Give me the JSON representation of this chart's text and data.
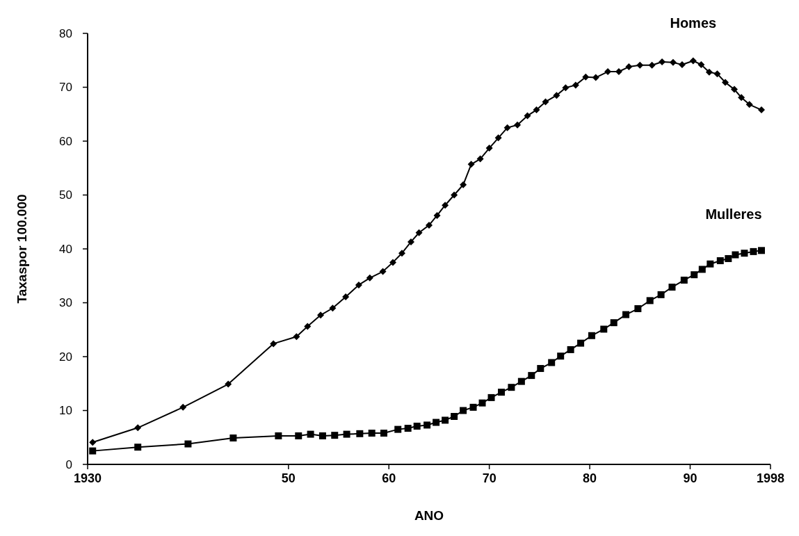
{
  "chart_data": {
    "type": "line",
    "xlabel": "ANO",
    "ylabel": "Taxaspor 100.000",
    "xlim": [
      1930,
      1998
    ],
    "ylim": [
      0,
      80
    ],
    "xticks": [
      {
        "value": 1930,
        "label": "1930"
      },
      {
        "value": 1950,
        "label": "50"
      },
      {
        "value": 1960,
        "label": "60"
      },
      {
        "value": 1970,
        "label": "70"
      },
      {
        "value": 1980,
        "label": "80"
      },
      {
        "value": 1990,
        "label": "90"
      },
      {
        "value": 1998,
        "label": "1998"
      }
    ],
    "yticks": [
      0,
      10,
      20,
      30,
      40,
      50,
      60,
      70,
      80
    ],
    "grid": false,
    "series": [
      {
        "name": "Homes",
        "color": "#000000",
        "marker": "diamond",
        "x": [
          1930.5,
          1935,
          1939.5,
          1944,
          1948.5,
          1950.8,
          1951.9,
          1953.2,
          1954.4,
          1955.7,
          1957.0,
          1958.1,
          1959.4,
          1960.4,
          1961.3,
          1962.2,
          1963.0,
          1964.0,
          1964.8,
          1965.6,
          1966.5,
          1967.4,
          1968.2,
          1969.1,
          1970.0,
          1970.9,
          1971.8,
          1972.8,
          1973.8,
          1974.7,
          1975.6,
          1976.7,
          1977.6,
          1978.6,
          1979.6,
          1980.6,
          1981.8,
          1982.9,
          1983.9,
          1985.0,
          1986.2,
          1987.2,
          1988.3,
          1989.2,
          1990.3,
          1991.1,
          1991.9,
          1992.7,
          1993.5,
          1994.4,
          1995.1,
          1995.9,
          1997.1
        ],
        "values": [
          4.1,
          6.8,
          10.6,
          14.9,
          22.4,
          23.7,
          25.6,
          27.7,
          29.0,
          31.1,
          33.3,
          34.6,
          35.8,
          37.5,
          39.2,
          41.3,
          43.0,
          44.4,
          46.2,
          48.1,
          50.0,
          51.9,
          55.7,
          56.7,
          58.7,
          60.6,
          62.5,
          63.0,
          64.7,
          65.8,
          67.3,
          68.5,
          69.9,
          70.4,
          71.9,
          71.8,
          72.9,
          72.9,
          73.8,
          74.1,
          74.1,
          74.7,
          74.6,
          74.2,
          74.9,
          74.2,
          72.8,
          72.5,
          70.9,
          69.6,
          68.1,
          66.8,
          65.8
        ]
      },
      {
        "name": "Mulleres",
        "color": "#000000",
        "marker": "square",
        "x": [
          1930.5,
          1935,
          1940,
          1944.5,
          1949,
          1951,
          1952.2,
          1953.4,
          1954.6,
          1955.8,
          1957.1,
          1958.3,
          1959.5,
          1960.9,
          1961.9,
          1962.8,
          1963.8,
          1964.7,
          1965.6,
          1966.5,
          1967.4,
          1968.4,
          1969.3,
          1970.2,
          1971.2,
          1972.2,
          1973.2,
          1974.2,
          1975.1,
          1976.2,
          1977.1,
          1978.1,
          1979.1,
          1980.2,
          1981.4,
          1982.4,
          1983.6,
          1984.8,
          1986.0,
          1987.1,
          1988.2,
          1989.4,
          1990.4,
          1991.2,
          1992.0,
          1993.0,
          1993.8,
          1994.5,
          1995.4,
          1996.3,
          1997.1
        ],
        "values": [
          2.5,
          3.2,
          3.8,
          4.9,
          5.3,
          5.3,
          5.6,
          5.3,
          5.4,
          5.6,
          5.7,
          5.8,
          5.8,
          6.5,
          6.7,
          7.1,
          7.3,
          7.8,
          8.2,
          8.9,
          10.0,
          10.6,
          11.4,
          12.4,
          13.4,
          14.3,
          15.4,
          16.5,
          17.8,
          18.9,
          20.1,
          21.3,
          22.5,
          23.9,
          25.1,
          26.3,
          27.8,
          28.9,
          30.4,
          31.5,
          32.9,
          34.2,
          35.2,
          36.2,
          37.2,
          37.8,
          38.2,
          38.9,
          39.2,
          39.5,
          39.7
        ]
      }
    ]
  }
}
